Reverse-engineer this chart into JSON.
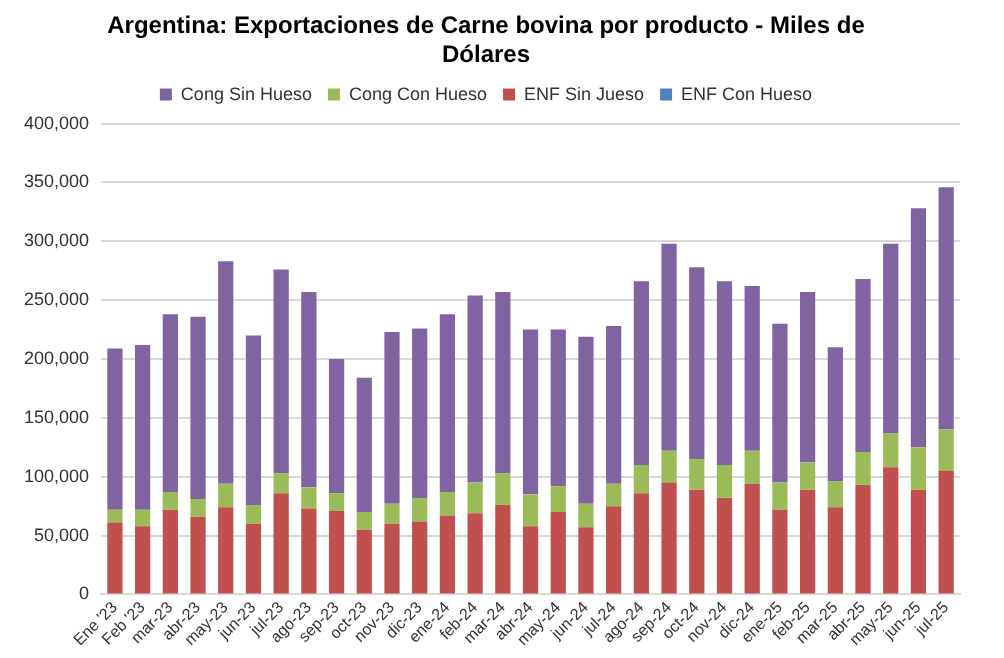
{
  "chart_data": {
    "type": "bar",
    "stacked": true,
    "title": "Argentina: Exportaciones de Carne bovina por producto - Miles de Dólares",
    "categories": [
      "Ene '23",
      "Feb '23",
      "mar-23",
      "abr-23",
      "may-23",
      "jun-23",
      "jul-23",
      "ago-23",
      "sep-23",
      "oct-23",
      "nov-23",
      "dic-23",
      "ene-24",
      "feb-24",
      "mar-24",
      "abr-24",
      "may-24",
      "jun-24",
      "jul-24",
      "ago-24",
      "sep-24",
      "oct-24",
      "nov-24",
      "dic-24",
      "ene-25",
      "feb-25",
      "mar-25",
      "abr-25",
      "may-25",
      "jun-25",
      "jul-25"
    ],
    "series": [
      {
        "name": "ENF Con Hueso",
        "color": "#4f81bd",
        "values": [
          0,
          0,
          0,
          0,
          0,
          0,
          0,
          0,
          0,
          0,
          0,
          0,
          0,
          0,
          0,
          0,
          0,
          0,
          0,
          0,
          0,
          0,
          0,
          0,
          0,
          0,
          0,
          0,
          0,
          0,
          0
        ]
      },
      {
        "name": "ENF Sin Jueso",
        "color": "#c0504d",
        "values": [
          61000,
          58000,
          72000,
          66000,
          74000,
          60000,
          86000,
          73000,
          71000,
          55000,
          60000,
          62000,
          67000,
          69000,
          76000,
          58000,
          70000,
          57000,
          75000,
          86000,
          95000,
          89000,
          82000,
          94000,
          72000,
          89000,
          74000,
          93000,
          108000,
          89000,
          105000
        ]
      },
      {
        "name": "Cong Con Hueso",
        "color": "#9bbb59",
        "values": [
          11000,
          14000,
          15000,
          15000,
          20000,
          16000,
          17000,
          18000,
          15000,
          15000,
          17000,
          20000,
          20000,
          26000,
          27000,
          27000,
          22000,
          20000,
          19000,
          24000,
          27000,
          26000,
          28000,
          28000,
          23000,
          23000,
          22000,
          28000,
          29000,
          36000,
          35000
        ]
      },
      {
        "name": "Cong Sin Hueso",
        "color": "#8064a2",
        "values": [
          137000,
          140000,
          151000,
          155000,
          189000,
          144000,
          173000,
          166000,
          114000,
          114000,
          146000,
          144000,
          151000,
          159000,
          154000,
          140000,
          133000,
          142000,
          134000,
          156000,
          176000,
          163000,
          156000,
          140000,
          135000,
          145000,
          114000,
          147000,
          161000,
          203000,
          206000
        ]
      }
    ],
    "ylim": [
      0,
      400000
    ],
    "yticks": [
      0,
      {
        "value": 50000,
        "label": "50,000"
      },
      {
        "value": 100000,
        "label": "100,000"
      },
      {
        "value": 150000,
        "label": "150,000"
      },
      {
        "value": 200000,
        "label": "200,000"
      },
      {
        "value": 250000,
        "label": "250,000"
      },
      {
        "value": 300000,
        "label": "300,000"
      },
      {
        "value": 350000,
        "label": "350,000"
      },
      {
        "value": 400000,
        "label": "400,000"
      }
    ],
    "grid": "y",
    "legend": "top"
  }
}
